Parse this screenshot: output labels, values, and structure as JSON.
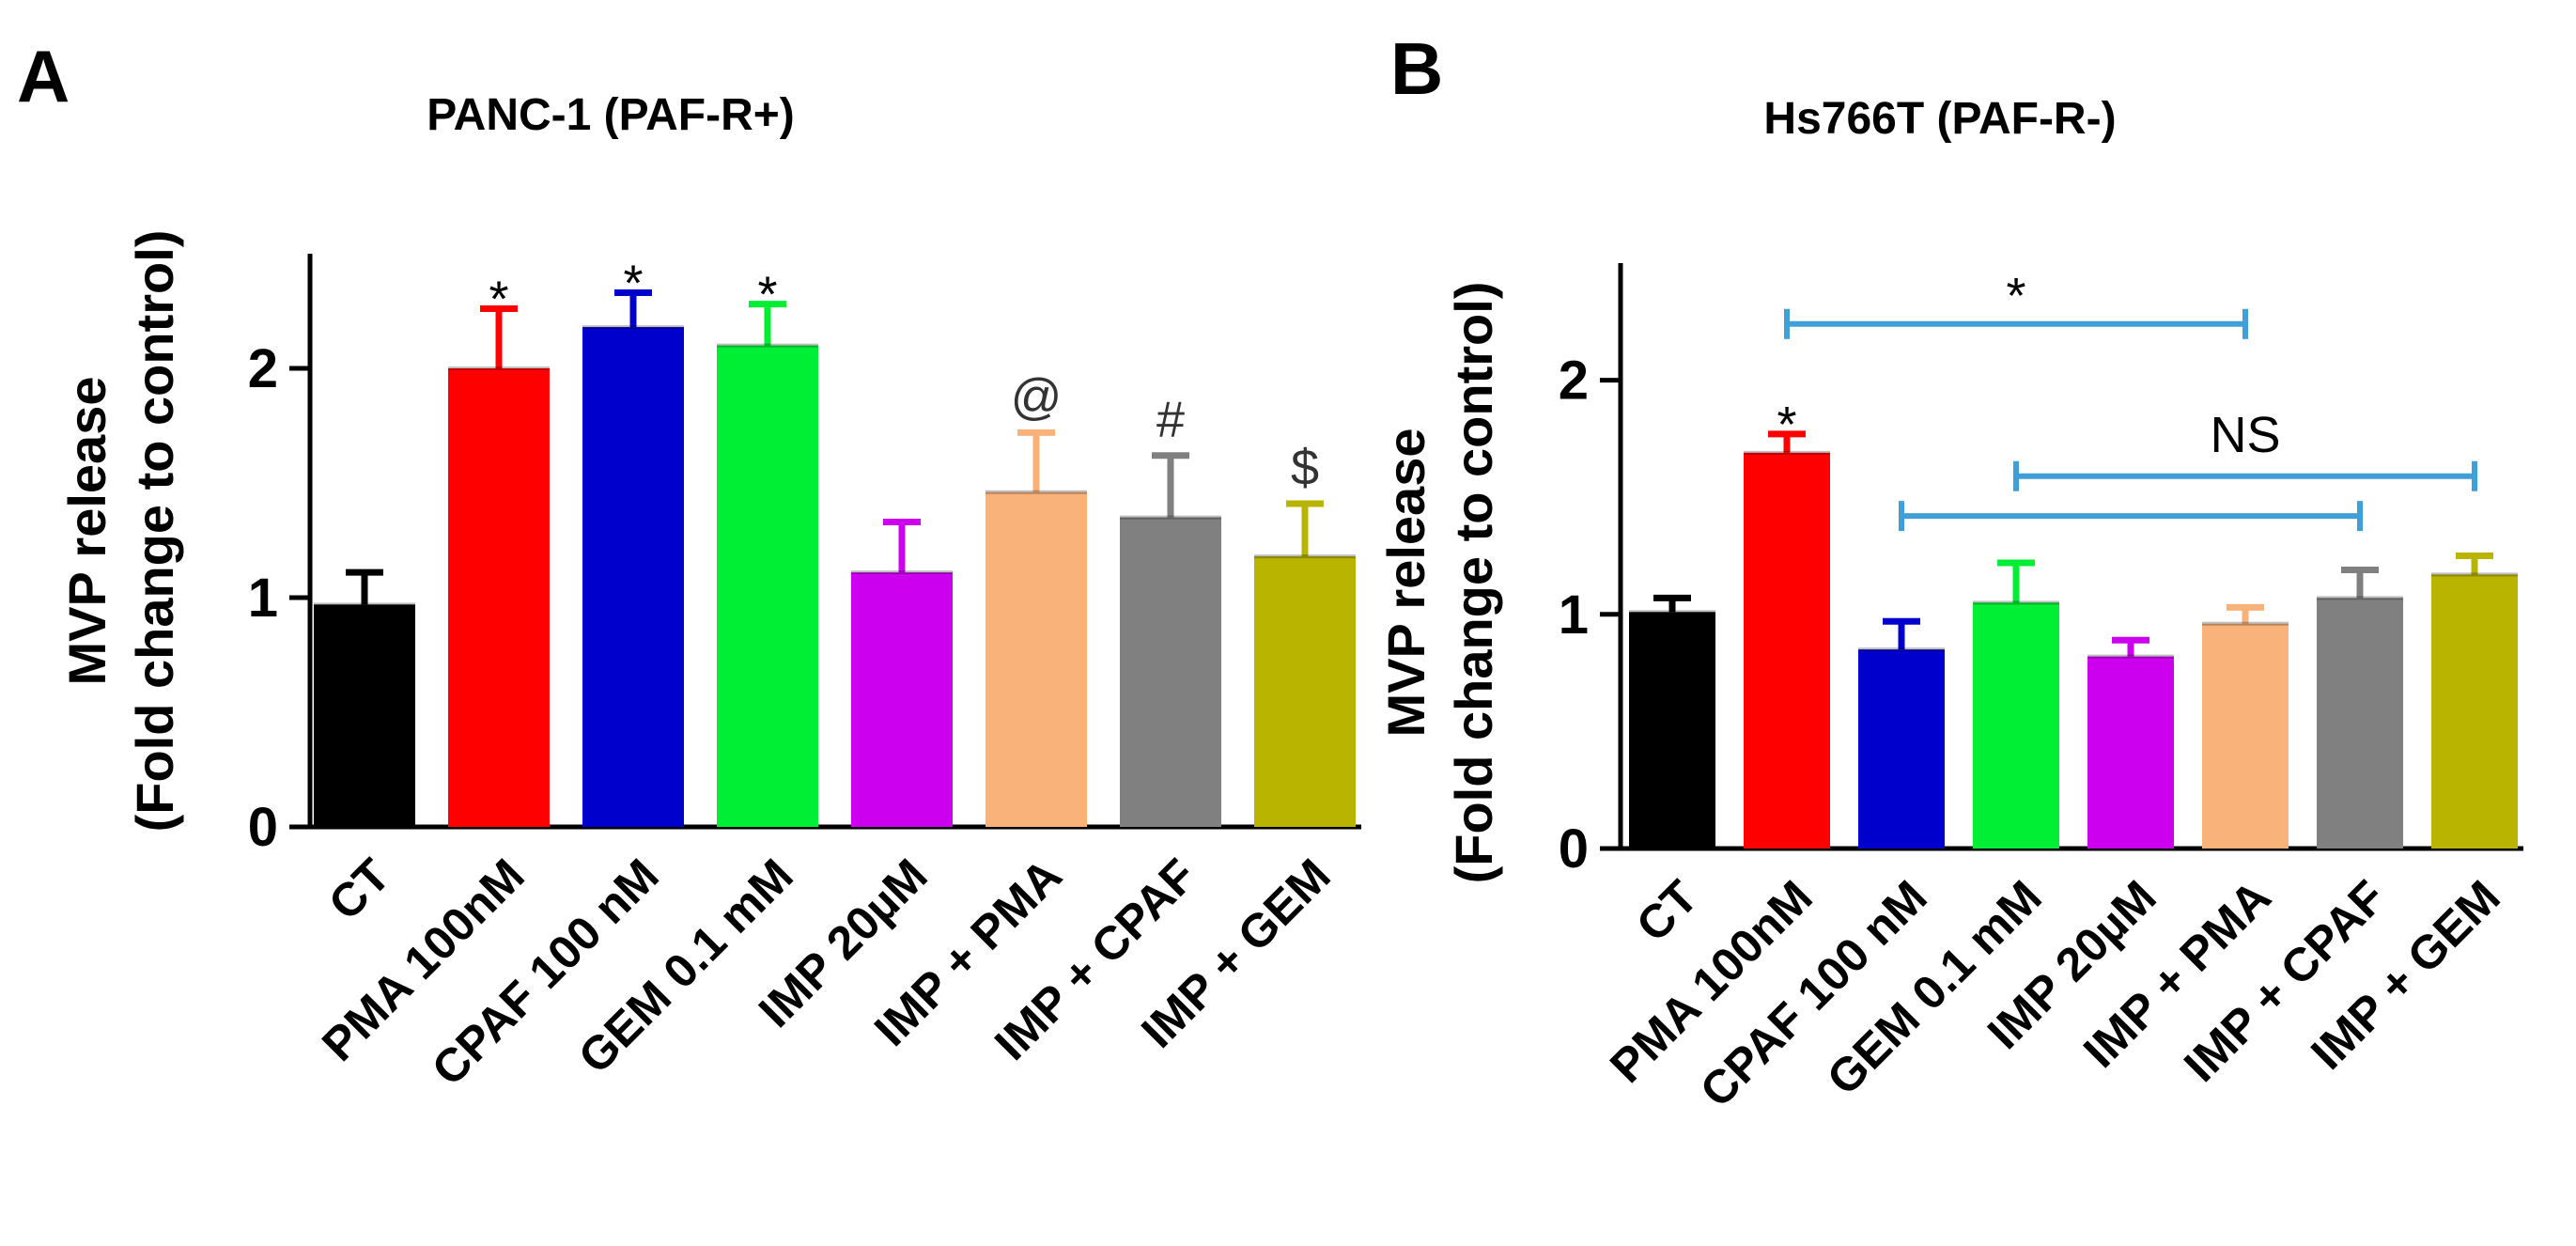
{
  "chart_data": [
    {
      "panel": "A",
      "type": "bar",
      "title": "PANC-1 (PAF-R+)",
      "ylabel_line1": "MVP release",
      "ylabel_line2": "(Fold change to control)",
      "xlabel": "",
      "ylim": [
        0,
        2.5
      ],
      "yticks": [
        0,
        1,
        2
      ],
      "categories": [
        "CT",
        "PMA 100nM",
        "CPAF 100 nM",
        "GEM 0.1 mM",
        "IMP 20µM",
        "IMP + PMA",
        "IMP + CPAF",
        "IMP + GEM"
      ],
      "values": [
        0.97,
        2.0,
        2.18,
        2.1,
        1.11,
        1.46,
        1.35,
        1.18
      ],
      "errors": [
        0.14,
        0.26,
        0.15,
        0.18,
        0.22,
        0.26,
        0.27,
        0.23
      ],
      "colors": [
        "#000000",
        "#ff0000",
        "#0000cc",
        "#00ee33",
        "#cc00ee",
        "#f8b27a",
        "#808080",
        "#b8b400"
      ],
      "bar_annotations": [
        "",
        "*",
        "*",
        "*",
        "",
        "@",
        "#",
        "$"
      ],
      "brackets": []
    },
    {
      "panel": "B",
      "type": "bar",
      "title": "Hs766T (PAF-R-)",
      "ylabel_line1": "MVP release",
      "ylabel_line2": "(Fold change to control)",
      "xlabel": "",
      "ylim": [
        0,
        2.5
      ],
      "yticks": [
        0,
        1,
        2
      ],
      "categories": [
        "CT",
        "PMA 100nM",
        "CPAF 100 nM",
        "GEM 0.1 mM",
        "IMP 20µM",
        "IMP + PMA",
        "IMP + CPAF",
        "IMP + GEM"
      ],
      "values": [
        1.01,
        1.69,
        0.85,
        1.05,
        0.82,
        0.96,
        1.07,
        1.17
      ],
      "errors": [
        0.06,
        0.08,
        0.12,
        0.17,
        0.07,
        0.07,
        0.12,
        0.08
      ],
      "colors": [
        "#000000",
        "#ff0000",
        "#0000cc",
        "#00ee33",
        "#cc00ee",
        "#f8b27a",
        "#808080",
        "#b8b400"
      ],
      "bar_annotations": [
        "",
        "*",
        "",
        "",
        "",
        "",
        "",
        ""
      ],
      "brackets": [
        {
          "from": 1,
          "to": 5,
          "y": 2.24,
          "label": "*",
          "color": "#3f9fd6"
        },
        {
          "from": 3,
          "to": 7,
          "y": 1.59,
          "label": "NS",
          "color": "#3f9fd6"
        },
        {
          "from": 2,
          "to": 6,
          "y": 1.42,
          "label": "",
          "color": "#3f9fd6"
        }
      ]
    }
  ]
}
